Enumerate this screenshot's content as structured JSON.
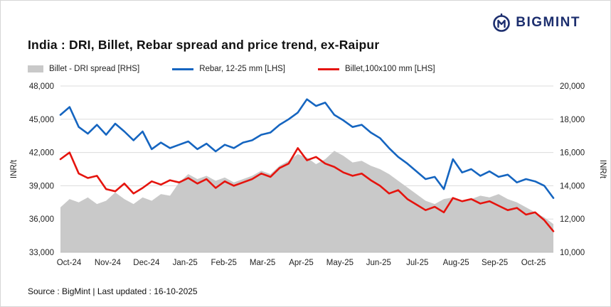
{
  "header": {
    "logo_text": "BIGMINT",
    "title": "India : DRI, Billet, Rebar spread and price trend, ex-Raipur"
  },
  "legend": [
    {
      "label": "Billet - DRI spread  [RHS]",
      "color": "#c9c9c9",
      "type": "area"
    },
    {
      "label": "Rebar, 12-25 mm [LHS]",
      "color": "#1565c0",
      "type": "line"
    },
    {
      "label": "Billet,100x100 mm [LHS]",
      "color": "#e5140e",
      "type": "line"
    }
  ],
  "footer": {
    "source_line": "Source : BigMint | Last updated : 16-10-2025"
  },
  "colors": {
    "rebar_blue": "#1565c0",
    "billet_red": "#e5140e",
    "spread_gray": "#c9c9c9",
    "logo_navy": "#1c2e6e",
    "gridline": "#dcdcdc",
    "axis_text": "#222222"
  },
  "chart_data": {
    "type": "line",
    "title": "India : DRI, Billet, Rebar spread and price trend, ex-Raipur",
    "x_tick_labels": [
      "Oct-24",
      "Nov-24",
      "Dec-24",
      "Jan-25",
      "Feb-25",
      "Mar-25",
      "Apr-25",
      "May-25",
      "Jun-25",
      "Jul-25",
      "Aug-25",
      "Sep-25",
      "Oct-25"
    ],
    "left_axis": {
      "label": "INR/t",
      "min": 33000,
      "max": 48000,
      "ticks": [
        33000,
        36000,
        39000,
        42000,
        45000,
        48000
      ]
    },
    "right_axis": {
      "label": "INR/t",
      "min": 10000,
      "max": 20000,
      "ticks": [
        10000,
        12000,
        14000,
        16000,
        18000,
        20000
      ]
    },
    "grid": true,
    "legend_position": "top",
    "series": [
      {
        "name": "Billet - DRI spread",
        "axis": "right",
        "render": "area",
        "color": "#c9c9c9",
        "values": [
          12700,
          13200,
          13000,
          13300,
          12900,
          13100,
          13600,
          13200,
          12900,
          13300,
          13100,
          13500,
          13400,
          14200,
          14700,
          14400,
          14600,
          14300,
          14500,
          14200,
          14400,
          14600,
          14900,
          14700,
          15200,
          15500,
          15900,
          15700,
          15300,
          15600,
          16100,
          15800,
          15400,
          15500,
          15200,
          15000,
          14700,
          14300,
          13900,
          13500,
          13100,
          12900,
          13200,
          13300,
          13100,
          13200,
          13400,
          13300,
          13500,
          13200,
          13000,
          12700,
          12400,
          12100,
          11700
        ]
      },
      {
        "name": "Rebar, 12-25 mm",
        "axis": "left",
        "render": "line",
        "color": "#1565c0",
        "values": [
          45400,
          46100,
          44300,
          43700,
          44500,
          43600,
          44600,
          43900,
          43100,
          43900,
          42300,
          42900,
          42400,
          42700,
          43000,
          42300,
          42800,
          42100,
          42700,
          42400,
          42900,
          43100,
          43600,
          43800,
          44500,
          45000,
          45600,
          46800,
          46200,
          46500,
          45400,
          44900,
          44300,
          44500,
          43800,
          43300,
          42400,
          41600,
          41000,
          40300,
          39600,
          39800,
          38700,
          41400,
          40200,
          40500,
          39900,
          40300,
          39800,
          40000,
          39300,
          39600,
          39400,
          39000,
          37900
        ]
      },
      {
        "name": "Billet,100x100 mm",
        "axis": "left",
        "render": "line",
        "color": "#e5140e",
        "values": [
          41400,
          42000,
          40100,
          39700,
          39900,
          38700,
          38500,
          39200,
          38300,
          38800,
          39400,
          39100,
          39500,
          39300,
          39700,
          39200,
          39600,
          38800,
          39400,
          39000,
          39300,
          39600,
          40100,
          39800,
          40600,
          41000,
          42400,
          41300,
          41600,
          41000,
          40700,
          40200,
          39900,
          40100,
          39500,
          39000,
          38300,
          38600,
          37800,
          37300,
          36800,
          37100,
          36600,
          37900,
          37600,
          37800,
          37400,
          37600,
          37200,
          36800,
          37000,
          36400,
          36600,
          35900,
          34900
        ]
      }
    ]
  }
}
